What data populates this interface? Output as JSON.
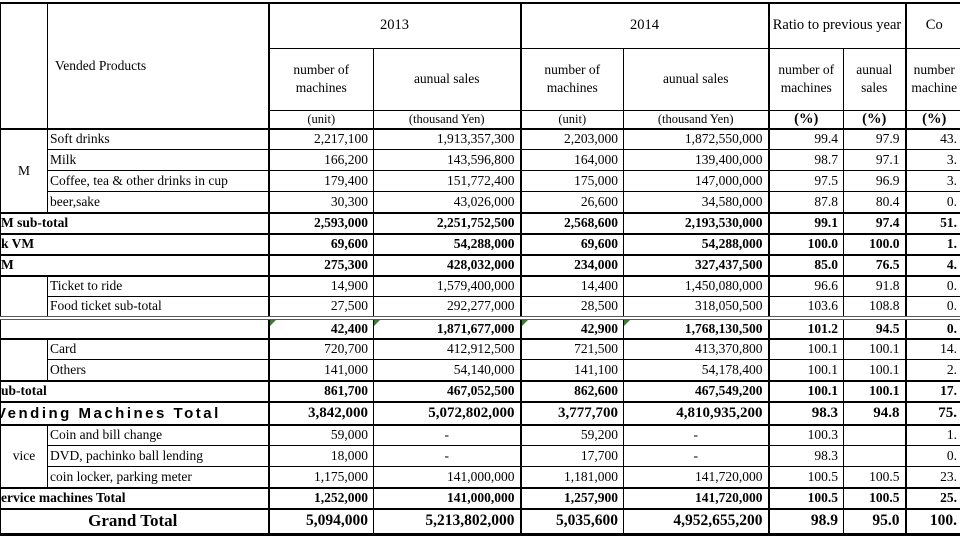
{
  "colors": {
    "error_flag": "#3a7d2c",
    "double_rule": "#595959"
  },
  "table": {
    "header": {
      "vended_products": "Vended Products",
      "year_2013": "2013",
      "year_2014": "2014",
      "ratio_title": "Ratio to previous year",
      "composition_title": "Co",
      "machines_label": "number of machines",
      "sales_label": "aunual sales",
      "comp_machines_label": "number machine",
      "unit_label": "(unit)",
      "thousand_yen_label": "(thousand Yen)",
      "percent_label": "(%)"
    },
    "rows": [
      {
        "group": {
          "label": "M",
          "rowspan": 4
        },
        "label": "Soft drinks",
        "values": [
          "2,217,100",
          "1,913,357,300",
          "2,203,000",
          "1,872,550,000",
          "99.4",
          "97.9",
          "43."
        ]
      },
      {
        "label": "Milk",
        "values": [
          "166,200",
          "143,596,800",
          "164,000",
          "139,400,000",
          "98.7",
          "97.1",
          "3."
        ]
      },
      {
        "label": "Coffee, tea & other drinks in cup",
        "values": [
          "179,400",
          "151,772,400",
          "175,000",
          "147,000,000",
          "97.5",
          "96.9",
          "3."
        ]
      },
      {
        "label": "beer,sake",
        "values": [
          "30,300",
          "43,026,000",
          "26,600",
          "34,580,000",
          "87.8",
          "80.4",
          "0."
        ]
      },
      {
        "merged": true,
        "label": "M sub-total",
        "style": "bold",
        "border_top": "medium",
        "values": [
          "2,593,000",
          "2,251,752,500",
          "2,568,600",
          "2,193,530,000",
          "99.1",
          "97.4",
          "51."
        ]
      },
      {
        "merged": true,
        "label": "k VM",
        "style": "bold",
        "border_top": "medium",
        "values": [
          "69,600",
          "54,288,000",
          "69,600",
          "54,288,000",
          "100.0",
          "100.0",
          "1."
        ]
      },
      {
        "merged": true,
        "label": "M",
        "style": "bold",
        "border_top": "medium",
        "values": [
          "275,300",
          "428,032,000",
          "234,000",
          "327,437,500",
          "85.0",
          "76.5",
          "4."
        ]
      },
      {
        "group": {
          "label": "",
          "rowspan": 2
        },
        "label": "Ticket to ride",
        "border_top": "medium",
        "values": [
          "14,900",
          "1,579,400,000",
          "14,400",
          "1,450,080,000",
          "96.6",
          "91.8",
          "0."
        ]
      },
      {
        "label": "Food ticket sub-total",
        "values": [
          "27,500",
          "292,277,000",
          "28,500",
          "318,050,500",
          "103.6",
          "108.8",
          "0."
        ]
      },
      {
        "merged": true,
        "label": "",
        "style": "bold",
        "border_top": "double",
        "flags": [
          0,
          1,
          2,
          3
        ],
        "values": [
          "42,400",
          "1,871,677,000",
          "42,900",
          "1,768,130,500",
          "101.2",
          "94.5",
          "0."
        ]
      },
      {
        "group": {
          "label": "",
          "rowspan": 2
        },
        "label": "Card",
        "border_top": "medium",
        "values": [
          "720,700",
          "412,912,500",
          "721,500",
          "413,370,800",
          "100.1",
          "100.1",
          "14."
        ]
      },
      {
        "label": "Others",
        "values": [
          "141,000",
          "54,140,000",
          "141,100",
          "54,178,400",
          "100.1",
          "100.1",
          "2."
        ]
      },
      {
        "merged": true,
        "label": "ub-total",
        "style": "bold",
        "border_top": "medium",
        "values": [
          "861,700",
          "467,052,500",
          "862,600",
          "467,549,200",
          "100.1",
          "100.1",
          "17."
        ]
      },
      {
        "merged": true,
        "label": "Vending Machines Total",
        "style": "vmtotal",
        "border_top": "medium",
        "values": [
          "3,842,000",
          "5,072,802,000",
          "3,777,700",
          "4,810,935,200",
          "98.3",
          "94.8",
          "75."
        ]
      },
      {
        "group": {
          "label": "vice",
          "rowspan": 3
        },
        "label": "Coin and bill change",
        "border_top": "medium",
        "values": [
          "59,000",
          "-",
          "59,200",
          "-",
          "100.3",
          "",
          "1."
        ]
      },
      {
        "label": "DVD, pachinko ball lending",
        "values": [
          "18,000",
          "-",
          "17,700",
          "-",
          "98.3",
          "",
          "0."
        ]
      },
      {
        "label": "coin locker, parking meter",
        "values": [
          "1,175,000",
          "141,000,000",
          "1,181,000",
          "141,720,000",
          "100.5",
          "100.5",
          "23."
        ]
      },
      {
        "merged": true,
        "label": "ervice machines Total",
        "style": "bold",
        "border_top": "medium",
        "values": [
          "1,252,000",
          "141,000,000",
          "1,257,900",
          "141,720,000",
          "100.5",
          "100.5",
          "25."
        ]
      },
      {
        "merged": true,
        "label": "Grand Total",
        "style": "grand",
        "border_top": "medium",
        "values": [
          "5,094,000",
          "5,213,802,000",
          "5,035,600",
          "4,952,655,200",
          "98.9",
          "95.0",
          "100."
        ]
      }
    ]
  }
}
